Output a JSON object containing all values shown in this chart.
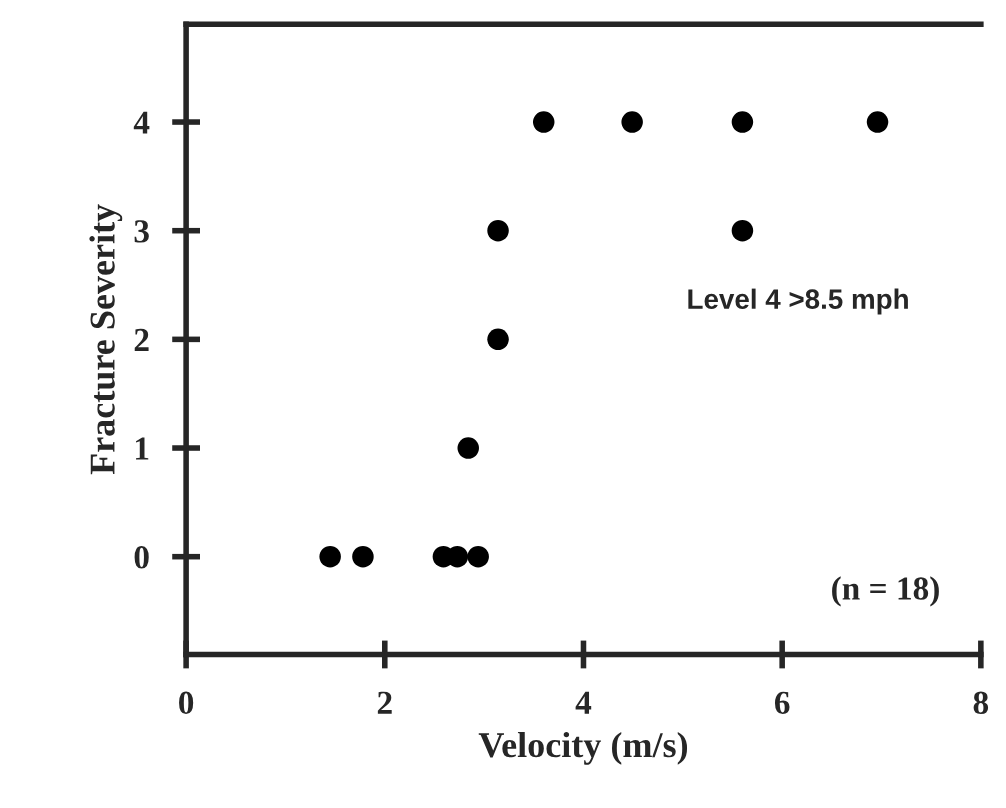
{
  "chart_data": {
    "type": "scatter",
    "xlabel": "Velocity (m/s)",
    "ylabel": "Fracture Severity",
    "x": [
      1.45,
      1.78,
      2.59,
      2.73,
      2.94,
      2.84,
      3.14,
      3.14,
      5.6,
      3.6,
      4.49,
      5.6,
      6.96
    ],
    "series": [
      {
        "color": "#000000",
        "values": [
          0,
          0,
          0,
          0,
          0,
          1,
          2,
          3,
          3,
          4,
          4,
          4,
          4
        ]
      }
    ],
    "xlim": [
      0,
      8
    ],
    "xticks": [
      0,
      2,
      4,
      6,
      8
    ],
    "ylim": [
      -0.9,
      4.9
    ],
    "yticks": [
      0,
      1,
      2,
      3,
      4
    ],
    "marker": "circle",
    "grid": false,
    "legend": false,
    "annotations": [
      "Level 4 >8.5 mph",
      "(n = 18)"
    ]
  }
}
